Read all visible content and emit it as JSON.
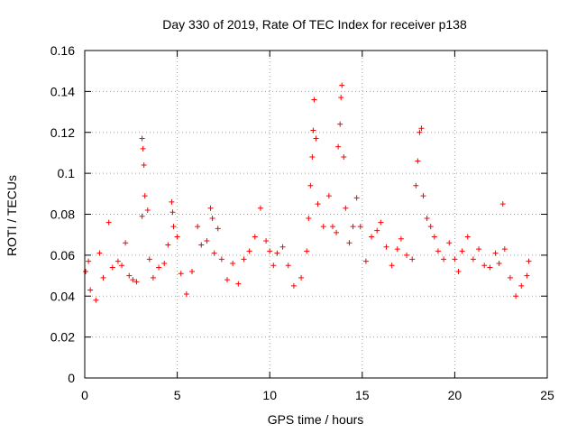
{
  "chart_data": {
    "type": "scatter",
    "title": "Day 330 of 2019, Rate Of TEC Index for receiver p138",
    "xlabel": "GPS time / hours",
    "ylabel": "ROTI / TECUs",
    "xlim": [
      0,
      25
    ],
    "ylim": [
      0,
      0.16
    ],
    "x_ticks": [
      "0",
      "5",
      "10",
      "15",
      "20",
      "25"
    ],
    "y_ticks": [
      "0",
      "0.02",
      "0.04",
      "0.06",
      "0.08",
      "0.1",
      "0.12",
      "0.14",
      "0.16"
    ],
    "grid": true,
    "marker": "+",
    "color": "#ff0000",
    "series": [
      {
        "values": [
          [
            0.05,
            0.052
          ],
          [
            0.2,
            0.057
          ],
          [
            0.3,
            0.043
          ],
          [
            0.6,
            0.038
          ],
          [
            0.8,
            0.061
          ],
          [
            1.0,
            0.049
          ],
          [
            1.3,
            0.076
          ],
          [
            1.5,
            0.054
          ],
          [
            1.8,
            0.057
          ],
          [
            2.0,
            0.055
          ],
          [
            2.2,
            0.066
          ],
          [
            2.4,
            0.05
          ],
          [
            2.6,
            0.048
          ],
          [
            2.8,
            0.047
          ],
          [
            3.1,
            0.117
          ],
          [
            3.15,
            0.112
          ],
          [
            3.2,
            0.104
          ],
          [
            3.25,
            0.089
          ],
          [
            3.1,
            0.079
          ],
          [
            3.4,
            0.082
          ],
          [
            3.5,
            0.058
          ],
          [
            3.7,
            0.049
          ],
          [
            4.0,
            0.054
          ],
          [
            4.3,
            0.056
          ],
          [
            4.5,
            0.065
          ],
          [
            4.7,
            0.086
          ],
          [
            4.75,
            0.081
          ],
          [
            4.8,
            0.074
          ],
          [
            5.0,
            0.069
          ],
          [
            5.2,
            0.051
          ],
          [
            5.5,
            0.041
          ],
          [
            5.8,
            0.052
          ],
          [
            6.1,
            0.074
          ],
          [
            6.3,
            0.065
          ],
          [
            6.6,
            0.067
          ],
          [
            6.8,
            0.083
          ],
          [
            6.9,
            0.078
          ],
          [
            7.0,
            0.061
          ],
          [
            7.2,
            0.073
          ],
          [
            7.4,
            0.058
          ],
          [
            7.7,
            0.048
          ],
          [
            8.0,
            0.056
          ],
          [
            8.3,
            0.046
          ],
          [
            8.6,
            0.058
          ],
          [
            8.9,
            0.062
          ],
          [
            9.2,
            0.069
          ],
          [
            9.5,
            0.083
          ],
          [
            9.8,
            0.067
          ],
          [
            10.0,
            0.062
          ],
          [
            10.2,
            0.055
          ],
          [
            10.4,
            0.061
          ],
          [
            10.7,
            0.064
          ],
          [
            11.0,
            0.055
          ],
          [
            11.3,
            0.045
          ],
          [
            11.7,
            0.049
          ],
          [
            12.0,
            0.062
          ],
          [
            12.1,
            0.078
          ],
          [
            12.2,
            0.094
          ],
          [
            12.3,
            0.108
          ],
          [
            12.35,
            0.121
          ],
          [
            12.4,
            0.136
          ],
          [
            12.5,
            0.117
          ],
          [
            12.6,
            0.085
          ],
          [
            12.9,
            0.074
          ],
          [
            13.2,
            0.089
          ],
          [
            13.4,
            0.074
          ],
          [
            13.6,
            0.071
          ],
          [
            13.7,
            0.113
          ],
          [
            13.8,
            0.124
          ],
          [
            13.85,
            0.137
          ],
          [
            13.9,
            0.143
          ],
          [
            14.0,
            0.108
          ],
          [
            14.1,
            0.083
          ],
          [
            14.3,
            0.066
          ],
          [
            14.5,
            0.074
          ],
          [
            14.7,
            0.088
          ],
          [
            14.9,
            0.074
          ],
          [
            15.2,
            0.057
          ],
          [
            15.5,
            0.069
          ],
          [
            15.8,
            0.072
          ],
          [
            16.0,
            0.076
          ],
          [
            16.3,
            0.064
          ],
          [
            16.6,
            0.055
          ],
          [
            16.9,
            0.063
          ],
          [
            17.1,
            0.068
          ],
          [
            17.4,
            0.06
          ],
          [
            17.7,
            0.058
          ],
          [
            17.9,
            0.094
          ],
          [
            18.0,
            0.106
          ],
          [
            18.1,
            0.12
          ],
          [
            18.2,
            0.122
          ],
          [
            18.3,
            0.089
          ],
          [
            18.5,
            0.078
          ],
          [
            18.7,
            0.074
          ],
          [
            18.9,
            0.069
          ],
          [
            19.1,
            0.062
          ],
          [
            19.4,
            0.058
          ],
          [
            19.7,
            0.066
          ],
          [
            20.0,
            0.058
          ],
          [
            20.2,
            0.052
          ],
          [
            20.4,
            0.062
          ],
          [
            20.7,
            0.069
          ],
          [
            21.0,
            0.058
          ],
          [
            21.3,
            0.063
          ],
          [
            21.6,
            0.055
          ],
          [
            21.9,
            0.054
          ],
          [
            22.2,
            0.061
          ],
          [
            22.4,
            0.056
          ],
          [
            22.6,
            0.085
          ],
          [
            22.7,
            0.063
          ],
          [
            23.0,
            0.049
          ],
          [
            23.3,
            0.04
          ],
          [
            23.6,
            0.045
          ],
          [
            23.9,
            0.05
          ],
          [
            24.0,
            0.057
          ]
        ]
      }
    ]
  }
}
